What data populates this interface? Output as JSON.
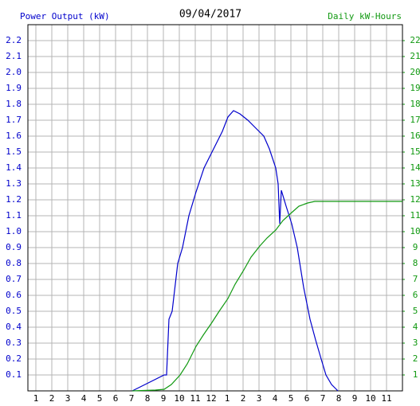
{
  "chart_data": {
    "type": "line",
    "title": "09/04/2017",
    "ylabel": "Power Output (kW)",
    "y2label": "Daily kW-Hours",
    "grid": true,
    "xlim": [
      0.5,
      24
    ],
    "xticks": [
      1,
      2,
      3,
      4,
      5,
      6,
      7,
      8,
      9,
      10,
      11,
      12,
      {
        "value": 13,
        "label": "1"
      },
      {
        "value": 14,
        "label": "2"
      },
      {
        "value": 15,
        "label": "3"
      },
      {
        "value": 16,
        "label": "4"
      },
      {
        "value": 17,
        "label": "5"
      },
      {
        "value": 18,
        "label": "6"
      },
      {
        "value": 19,
        "label": "7"
      },
      {
        "value": 20,
        "label": "8"
      },
      {
        "value": 21,
        "label": "9"
      },
      {
        "value": 22,
        "label": "10"
      },
      {
        "value": 23,
        "label": "11"
      }
    ],
    "ylim": [
      0,
      2.3
    ],
    "yticks": [
      0.1,
      0.2,
      0.3,
      0.4,
      0.5,
      0.6,
      0.7,
      0.8,
      0.9,
      {
        "value": 1,
        "label": "1.0"
      },
      1.1,
      1.2,
      1.3,
      1.4,
      1.5,
      1.6,
      1.7,
      1.8,
      1.9,
      {
        "value": 2,
        "label": "2.0"
      },
      2.1,
      2.2
    ],
    "y2lim": [
      0,
      23
    ],
    "y2ticks": [
      1,
      2,
      3,
      4,
      5,
      6,
      7,
      8,
      9,
      10,
      11,
      12,
      13,
      14,
      15,
      16,
      17,
      18,
      19,
      20,
      21,
      22
    ],
    "series": [
      {
        "color": "#0000cc",
        "x": [
          7.05,
          8.05,
          9.05,
          9.2,
          9.35,
          9.55,
          9.9,
          10.2,
          10.6,
          11.05,
          11.55,
          12.05,
          12.7,
          13.05,
          13.4,
          13.8,
          14.3,
          14.8,
          15.3,
          15.65,
          16.05,
          16.2,
          16.3,
          16.4,
          16.7,
          17.05,
          17.4,
          17.8,
          18.2,
          18.55,
          18.9,
          19.2,
          19.55,
          19.95
        ],
        "values": [
          0,
          0.05,
          0.1,
          0.1,
          0.45,
          0.5,
          0.8,
          0.9,
          1.1,
          1.25,
          1.4,
          1.5,
          1.63,
          1.72,
          1.76,
          1.74,
          1.7,
          1.65,
          1.6,
          1.52,
          1.4,
          1.3,
          1.05,
          1.26,
          1.16,
          1.05,
          0.9,
          0.65,
          0.45,
          0.32,
          0.2,
          0.1,
          0.04,
          0
        ]
      },
      {
        "color": "#119911",
        "axis": "y2",
        "x": [
          7.05,
          8.5,
          9.05,
          9.5,
          10.05,
          10.5,
          11.05,
          11.5,
          12.05,
          12.5,
          13.05,
          13.5,
          14.05,
          14.5,
          15.05,
          15.5,
          16.05,
          16.5,
          17.05,
          17.5,
          18.05,
          18.5,
          19,
          24
        ],
        "values": [
          0,
          0.05,
          0.1,
          0.4,
          1.0,
          1.7,
          2.8,
          3.5,
          4.3,
          5.0,
          5.8,
          6.7,
          7.6,
          8.4,
          9.1,
          9.6,
          10.1,
          10.7,
          11.2,
          11.6,
          11.8,
          11.9,
          11.9,
          11.9
        ]
      }
    ]
  }
}
